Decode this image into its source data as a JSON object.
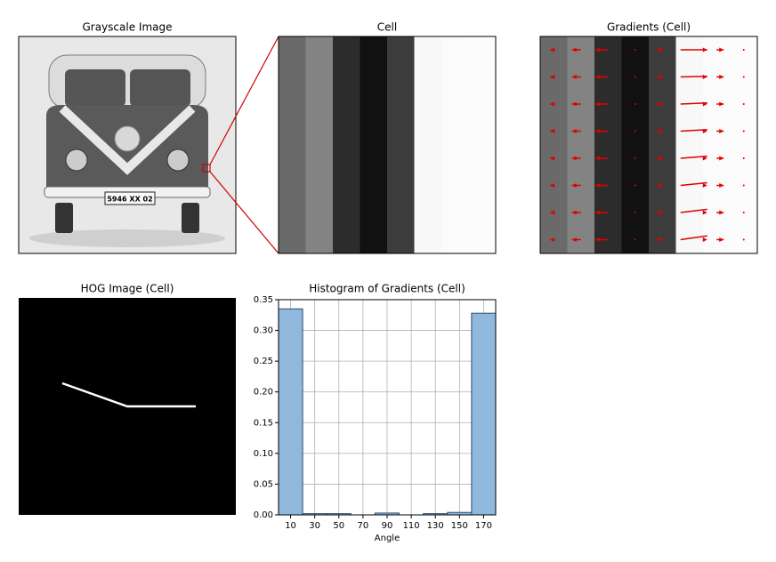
{
  "panels": {
    "grayscale": {
      "title": "Grayscale Image",
      "plate": "5946 XX 02"
    },
    "cell": {
      "title": "Cell"
    },
    "gradients": {
      "title": "Gradients (Cell)"
    },
    "hog": {
      "title": "HOG Image (Cell)"
    }
  },
  "chart_data": {
    "type": "histogram",
    "title": "Histogram of Gradients (Cell)",
    "x_label": "Angle",
    "bins": [
      0,
      20,
      40,
      60,
      80,
      100,
      120,
      140,
      160,
      180
    ],
    "values": [
      0.335,
      0.002,
      0.002,
      0,
      0.003,
      0,
      0.002,
      0.004,
      0.328
    ],
    "color": "#8fb8dc",
    "edge_color": "#2f4f6f",
    "xlim": [
      0,
      180
    ],
    "xticks": [
      10,
      30,
      50,
      70,
      90,
      110,
      130,
      150,
      170
    ],
    "ylim": [
      0,
      0.35
    ],
    "yticks": [
      {
        "value": 0,
        "label": "0.00"
      },
      {
        "value": 0.05,
        "label": "0.05"
      },
      {
        "value": 0.1,
        "label": "0.10"
      },
      {
        "value": 0.15,
        "label": "0.15"
      },
      {
        "value": 0.2,
        "label": "0.20"
      },
      {
        "value": 0.25,
        "label": "0.25"
      },
      {
        "value": 0.3,
        "label": "0.30"
      },
      {
        "value": 0.35,
        "label": "0.35"
      }
    ],
    "grid": true
  }
}
